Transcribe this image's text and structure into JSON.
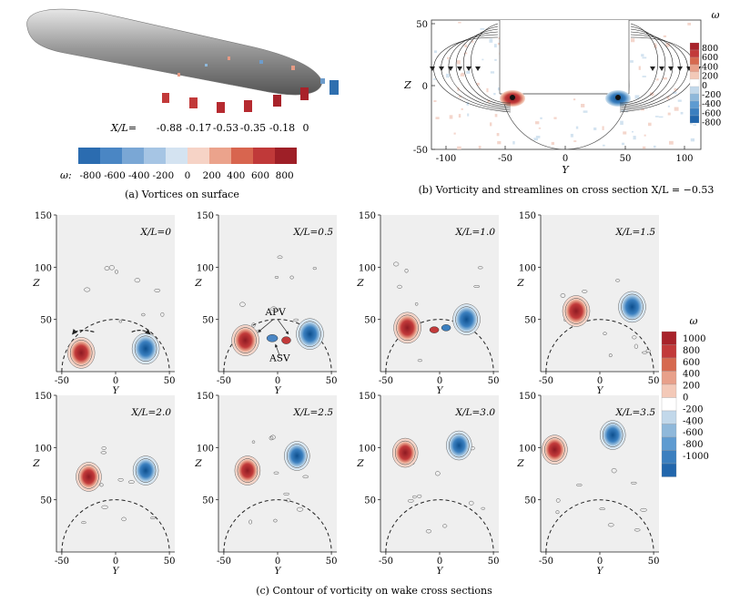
{
  "panel_a": {
    "caption": "(a) Vortices on surface",
    "xl_label": "X/L=",
    "xl_values": [
      "-0.88",
      "-0.17",
      "-0.53",
      "-0.35",
      "-0.18",
      "0"
    ],
    "colorbar_label": "ω:",
    "colorbar_ticks": [
      "-800",
      "-600",
      "-400",
      "-200",
      "0",
      "200",
      "400",
      "600",
      "800"
    ]
  },
  "panel_b": {
    "caption": "(b) Vorticity and streamlines on cross section X/L = −0.53",
    "xlabel": "Y",
    "ylabel": "Z",
    "xticks": [
      "-100",
      "-50",
      "0",
      "50",
      "100"
    ],
    "yticks": [
      "50",
      "0",
      "-50"
    ],
    "colorbar_title": "ω",
    "colorbar_ticks": [
      "800",
      "600",
      "400",
      "200",
      "0",
      "-200",
      "-400",
      "-600",
      "-800"
    ]
  },
  "panel_c": {
    "caption": "(c) Contour of vorticity on wake cross sections",
    "xlabel": "Y",
    "ylabel": "Z",
    "xticks": [
      "-50",
      "0",
      "50"
    ],
    "yticks": [
      "150",
      "100",
      "50"
    ],
    "annotations": {
      "apv": "APV",
      "asv": "ASV"
    },
    "colorbar_title": "ω",
    "colorbar_ticks": [
      "1000",
      "800",
      "600",
      "400",
      "200",
      "0",
      "-200",
      "-400",
      "-600",
      "-800",
      "-1000"
    ]
  },
  "chart_data": [
    {
      "type": "heatmap",
      "title": "Vorticity and streamlines on cross section X/L = -0.53",
      "xlabel": "Y",
      "ylabel": "Z",
      "xlim": [
        -110,
        110
      ],
      "ylim": [
        -50,
        50
      ],
      "vortices": [
        {
          "y": -50,
          "z": -13,
          "sign": "positive"
        },
        {
          "y": 50,
          "z": -13,
          "sign": "negative"
        }
      ]
    },
    {
      "type": "heatmap",
      "title": "Contour of vorticity on wake cross sections",
      "xlabel": "Y",
      "ylabel": "Z",
      "xlim": [
        -55,
        55
      ],
      "ylim": [
        0,
        150
      ],
      "colorbar_range": [
        -1000,
        1000
      ],
      "sections": [
        {
          "label": "X/L=0",
          "pos": {
            "y": -32,
            "z": 18
          },
          "neg": {
            "y": 28,
            "z": 22
          }
        },
        {
          "label": "X/L=0.5",
          "pos": {
            "y": -30,
            "z": 30
          },
          "neg": {
            "y": 30,
            "z": 36
          }
        },
        {
          "label": "X/L=1.0",
          "pos": {
            "y": -30,
            "z": 42
          },
          "neg": {
            "y": 25,
            "z": 50
          }
        },
        {
          "label": "X/L=1.5",
          "pos": {
            "y": -22,
            "z": 58
          },
          "neg": {
            "y": 30,
            "z": 62
          }
        },
        {
          "label": "X/L=2.0",
          "pos": {
            "y": -25,
            "z": 72
          },
          "neg": {
            "y": 28,
            "z": 78
          }
        },
        {
          "label": "X/L=2.5",
          "pos": {
            "y": -28,
            "z": 78
          },
          "neg": {
            "y": 18,
            "z": 92
          }
        },
        {
          "label": "X/L=3.0",
          "pos": {
            "y": -32,
            "z": 95
          },
          "neg": {
            "y": 18,
            "z": 102
          }
        },
        {
          "label": "X/L=3.5",
          "pos": {
            "y": -42,
            "z": 98
          },
          "neg": {
            "y": 12,
            "z": 112
          }
        }
      ]
    }
  ]
}
